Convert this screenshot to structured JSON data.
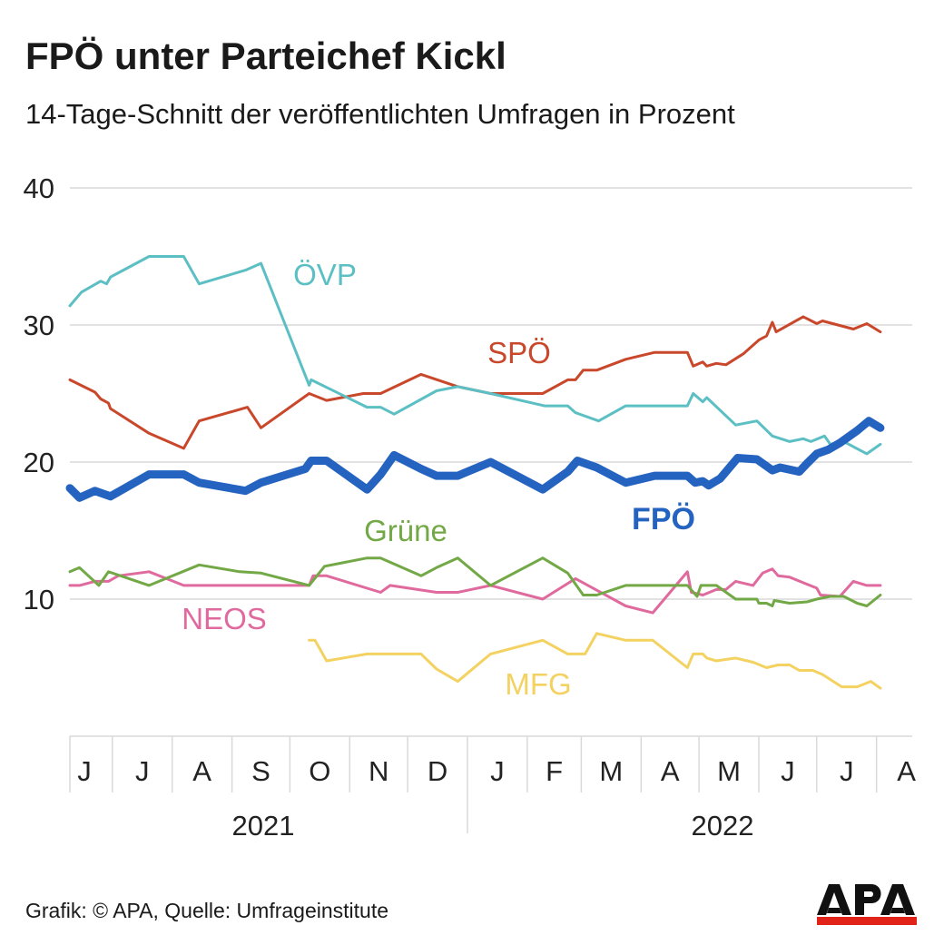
{
  "chart_data": {
    "type": "line",
    "title": "FPÖ unter Parteichef Kickl",
    "subtitle": "14-Tage-Schnitt der veröffentlichten Umfragen in Prozent",
    "xlabel": "",
    "ylabel": "",
    "ylim": [
      0,
      40
    ],
    "yticks": [
      10,
      20,
      30,
      40
    ],
    "xlim": [
      "2021-06-01",
      "2022-08-31"
    ],
    "grid": true,
    "month_labels": [
      "J",
      "J",
      "A",
      "S",
      "O",
      "N",
      "D",
      "J",
      "F",
      "M",
      "A",
      "M",
      "J",
      "J",
      "A"
    ],
    "year_labels": [
      "2021",
      "2022"
    ],
    "series": [
      {
        "name": "ÖVP",
        "color": "#5bbfc4",
        "points": [
          [
            "2021-06-09",
            31.4
          ],
          [
            "2021-06-15",
            32.4
          ],
          [
            "2021-06-25",
            33.2
          ],
          [
            "2021-06-28",
            33.0
          ],
          [
            "2021-06-30",
            33.5
          ],
          [
            "2021-07-20",
            35.0
          ],
          [
            "2021-08-07",
            35.0
          ],
          [
            "2021-08-15",
            33.0
          ],
          [
            "2021-09-08",
            34.0
          ],
          [
            "2021-09-16",
            34.5
          ],
          [
            "2021-10-11",
            25.6
          ],
          [
            "2021-10-12",
            26.0
          ],
          [
            "2021-11-10",
            24.0
          ],
          [
            "2021-11-17",
            24.0
          ],
          [
            "2021-11-24",
            23.5
          ],
          [
            "2021-12-16",
            25.2
          ],
          [
            "2021-12-27",
            25.5
          ],
          [
            "2022-01-13",
            25.0
          ],
          [
            "2022-02-10",
            24.1
          ],
          [
            "2022-02-22",
            24.1
          ],
          [
            "2022-02-26",
            23.6
          ],
          [
            "2022-03-10",
            23.0
          ],
          [
            "2022-03-24",
            24.1
          ],
          [
            "2022-04-25",
            24.1
          ],
          [
            "2022-04-28",
            25.0
          ],
          [
            "2022-05-03",
            24.4
          ],
          [
            "2022-05-05",
            24.7
          ],
          [
            "2022-05-20",
            22.7
          ],
          [
            "2022-05-31",
            23.0
          ],
          [
            "2022-06-08",
            21.9
          ],
          [
            "2022-06-17",
            21.5
          ],
          [
            "2022-06-24",
            21.7
          ],
          [
            "2022-06-28",
            21.5
          ],
          [
            "2022-07-05",
            21.9
          ],
          [
            "2022-07-08",
            21.3
          ],
          [
            "2022-07-15",
            21.5
          ],
          [
            "2022-07-27",
            20.6
          ],
          [
            "2022-08-03",
            21.3
          ]
        ]
      },
      {
        "name": "SPÖ",
        "color": "#c9472a",
        "points": [
          [
            "2021-06-09",
            26.0
          ],
          [
            "2021-06-22",
            25.1
          ],
          [
            "2021-06-25",
            24.6
          ],
          [
            "2021-06-29",
            24.3
          ],
          [
            "2021-06-30",
            23.9
          ],
          [
            "2021-07-20",
            22.1
          ],
          [
            "2021-08-07",
            21.0
          ],
          [
            "2021-08-15",
            23.0
          ],
          [
            "2021-09-09",
            24.0
          ],
          [
            "2021-09-16",
            22.5
          ],
          [
            "2021-10-11",
            25.0
          ],
          [
            "2021-10-20",
            24.5
          ],
          [
            "2021-11-08",
            25.0
          ],
          [
            "2021-11-17",
            25.0
          ],
          [
            "2021-12-08",
            26.4
          ],
          [
            "2021-12-27",
            25.5
          ],
          [
            "2022-01-13",
            25.0
          ],
          [
            "2022-02-09",
            25.0
          ],
          [
            "2022-02-22",
            26.0
          ],
          [
            "2022-02-26",
            26.0
          ],
          [
            "2022-03-02",
            26.7
          ],
          [
            "2022-03-09",
            26.7
          ],
          [
            "2022-03-24",
            27.5
          ],
          [
            "2022-04-08",
            28.0
          ],
          [
            "2022-04-25",
            28.0
          ],
          [
            "2022-04-28",
            27.0
          ],
          [
            "2022-05-03",
            27.3
          ],
          [
            "2022-05-05",
            27.0
          ],
          [
            "2022-05-10",
            27.2
          ],
          [
            "2022-05-15",
            27.1
          ],
          [
            "2022-05-24",
            27.9
          ],
          [
            "2022-06-01",
            28.9
          ],
          [
            "2022-06-05",
            29.2
          ],
          [
            "2022-06-08",
            30.2
          ],
          [
            "2022-06-10",
            29.5
          ],
          [
            "2022-06-24",
            30.6
          ],
          [
            "2022-07-01",
            30.1
          ],
          [
            "2022-07-04",
            30.3
          ],
          [
            "2022-07-20",
            29.7
          ],
          [
            "2022-07-27",
            30.1
          ],
          [
            "2022-08-03",
            29.5
          ]
        ]
      },
      {
        "name": "FPÖ",
        "color": "#2563c0",
        "bold": true,
        "points": [
          [
            "2021-06-09",
            18.1
          ],
          [
            "2021-06-14",
            17.4
          ],
          [
            "2021-06-22",
            17.9
          ],
          [
            "2021-06-30",
            17.5
          ],
          [
            "2021-07-20",
            19.1
          ],
          [
            "2021-08-07",
            19.1
          ],
          [
            "2021-08-15",
            18.5
          ],
          [
            "2021-09-08",
            17.9
          ],
          [
            "2021-09-16",
            18.5
          ],
          [
            "2021-10-09",
            19.5
          ],
          [
            "2021-10-12",
            20.1
          ],
          [
            "2021-10-20",
            20.1
          ],
          [
            "2021-11-10",
            18.0
          ],
          [
            "2021-11-17",
            19.1
          ],
          [
            "2021-11-24",
            20.5
          ],
          [
            "2021-12-08",
            19.5
          ],
          [
            "2021-12-16",
            19.0
          ],
          [
            "2021-12-27",
            19.0
          ],
          [
            "2022-01-13",
            20.0
          ],
          [
            "2022-02-09",
            18.0
          ],
          [
            "2022-02-22",
            19.3
          ],
          [
            "2022-02-27",
            20.1
          ],
          [
            "2022-03-09",
            19.6
          ],
          [
            "2022-03-24",
            18.5
          ],
          [
            "2022-04-08",
            19.0
          ],
          [
            "2022-04-25",
            19.0
          ],
          [
            "2022-04-29",
            18.5
          ],
          [
            "2022-05-03",
            18.6
          ],
          [
            "2022-05-06",
            18.3
          ],
          [
            "2022-05-12",
            18.8
          ],
          [
            "2022-05-21",
            20.3
          ],
          [
            "2022-05-31",
            20.2
          ],
          [
            "2022-06-08",
            19.4
          ],
          [
            "2022-06-12",
            19.6
          ],
          [
            "2022-06-22",
            19.3
          ],
          [
            "2022-06-26",
            19.9
          ],
          [
            "2022-07-01",
            20.6
          ],
          [
            "2022-07-07",
            20.9
          ],
          [
            "2022-07-13",
            21.4
          ],
          [
            "2022-07-22",
            22.3
          ],
          [
            "2022-07-28",
            23.0
          ],
          [
            "2022-08-03",
            22.5
          ]
        ]
      },
      {
        "name": "Grüne",
        "color": "#72a845",
        "points": [
          [
            "2021-06-09",
            12.0
          ],
          [
            "2021-06-14",
            12.3
          ],
          [
            "2021-06-24",
            11.0
          ],
          [
            "2021-06-29",
            12.0
          ],
          [
            "2021-07-20",
            11.0
          ],
          [
            "2021-08-15",
            12.5
          ],
          [
            "2021-09-05",
            12.0
          ],
          [
            "2021-09-16",
            11.9
          ],
          [
            "2021-10-11",
            11.0
          ],
          [
            "2021-10-19",
            12.4
          ],
          [
            "2021-11-10",
            13.0
          ],
          [
            "2021-11-17",
            13.0
          ],
          [
            "2021-12-08",
            11.7
          ],
          [
            "2021-12-16",
            12.3
          ],
          [
            "2021-12-27",
            13.0
          ],
          [
            "2022-01-13",
            11.0
          ],
          [
            "2022-02-09",
            13.0
          ],
          [
            "2022-02-22",
            11.9
          ],
          [
            "2022-03-02",
            10.3
          ],
          [
            "2022-03-09",
            10.3
          ],
          [
            "2022-03-24",
            11.0
          ],
          [
            "2022-04-25",
            11.0
          ],
          [
            "2022-04-30",
            10.2
          ],
          [
            "2022-05-02",
            11.0
          ],
          [
            "2022-05-10",
            11.0
          ],
          [
            "2022-05-20",
            10.0
          ],
          [
            "2022-05-31",
            10.0
          ],
          [
            "2022-06-01",
            9.7
          ],
          [
            "2022-06-05",
            9.7
          ],
          [
            "2022-06-08",
            9.5
          ],
          [
            "2022-06-09",
            9.9
          ],
          [
            "2022-06-17",
            9.7
          ],
          [
            "2022-06-26",
            9.8
          ],
          [
            "2022-07-01",
            10.0
          ],
          [
            "2022-07-08",
            10.2
          ],
          [
            "2022-07-15",
            10.2
          ],
          [
            "2022-07-22",
            9.7
          ],
          [
            "2022-07-27",
            9.5
          ],
          [
            "2022-08-03",
            10.3
          ]
        ]
      },
      {
        "name": "NEOS",
        "color": "#e06a9e",
        "points": [
          [
            "2021-06-09",
            11.0
          ],
          [
            "2021-06-14",
            11.0
          ],
          [
            "2021-06-22",
            11.3
          ],
          [
            "2021-06-29",
            11.3
          ],
          [
            "2021-07-04",
            11.7
          ],
          [
            "2021-07-20",
            12.0
          ],
          [
            "2021-08-07",
            11.0
          ],
          [
            "2021-10-11",
            11.0
          ],
          [
            "2021-10-13",
            11.7
          ],
          [
            "2021-10-20",
            11.7
          ],
          [
            "2021-11-17",
            10.5
          ],
          [
            "2021-11-22",
            11.0
          ],
          [
            "2021-12-16",
            10.5
          ],
          [
            "2021-12-27",
            10.5
          ],
          [
            "2022-01-13",
            11.0
          ],
          [
            "2022-02-09",
            10.0
          ],
          [
            "2022-02-26",
            11.5
          ],
          [
            "2022-03-24",
            9.5
          ],
          [
            "2022-04-07",
            9.0
          ],
          [
            "2022-04-25",
            12.0
          ],
          [
            "2022-04-27",
            10.5
          ],
          [
            "2022-05-03",
            10.3
          ],
          [
            "2022-05-10",
            10.7
          ],
          [
            "2022-05-15",
            10.7
          ],
          [
            "2022-05-20",
            11.3
          ],
          [
            "2022-05-29",
            11.0
          ],
          [
            "2022-06-03",
            11.9
          ],
          [
            "2022-06-08",
            12.2
          ],
          [
            "2022-06-11",
            11.7
          ],
          [
            "2022-06-17",
            11.6
          ],
          [
            "2022-06-24",
            11.2
          ],
          [
            "2022-07-01",
            10.8
          ],
          [
            "2022-07-03",
            10.3
          ],
          [
            "2022-07-13",
            10.2
          ],
          [
            "2022-07-20",
            11.3
          ],
          [
            "2022-07-27",
            11.0
          ],
          [
            "2022-08-03",
            11.0
          ]
        ]
      },
      {
        "name": "MFG",
        "color": "#f3d261",
        "points": [
          [
            "2021-10-11",
            7.0
          ],
          [
            "2021-10-14",
            7.0
          ],
          [
            "2021-10-20",
            5.5
          ],
          [
            "2021-11-10",
            6.0
          ],
          [
            "2021-12-08",
            6.0
          ],
          [
            "2021-12-16",
            4.9
          ],
          [
            "2021-12-27",
            4.0
          ],
          [
            "2022-01-13",
            6.0
          ],
          [
            "2022-02-09",
            7.0
          ],
          [
            "2022-02-22",
            6.0
          ],
          [
            "2022-03-03",
            6.0
          ],
          [
            "2022-03-09",
            7.5
          ],
          [
            "2022-03-24",
            7.0
          ],
          [
            "2022-04-07",
            7.0
          ],
          [
            "2022-04-25",
            5.0
          ],
          [
            "2022-04-28",
            6.0
          ],
          [
            "2022-05-03",
            6.0
          ],
          [
            "2022-05-05",
            5.7
          ],
          [
            "2022-05-10",
            5.5
          ],
          [
            "2022-05-20",
            5.7
          ],
          [
            "2022-05-29",
            5.4
          ],
          [
            "2022-06-05",
            5.0
          ],
          [
            "2022-06-11",
            5.2
          ],
          [
            "2022-06-17",
            5.2
          ],
          [
            "2022-06-22",
            4.8
          ],
          [
            "2022-06-29",
            4.8
          ],
          [
            "2022-07-04",
            4.5
          ],
          [
            "2022-07-14",
            3.6
          ],
          [
            "2022-07-22",
            3.6
          ],
          [
            "2022-07-29",
            4.0
          ],
          [
            "2022-08-03",
            3.5
          ]
        ]
      }
    ]
  },
  "footer": "Grafik: © APA, Quelle: Umfrageinstitute",
  "logo_text": "APA",
  "colors": {
    "grid": "#d9d9d9",
    "logo_red": "#e2231a"
  }
}
